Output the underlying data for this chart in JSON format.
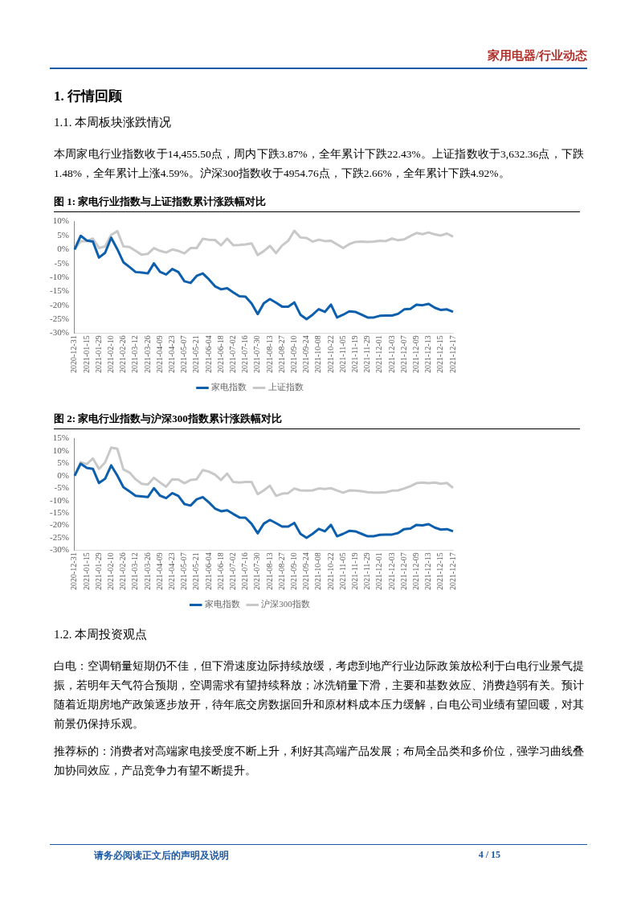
{
  "chart_data": [
    {
      "type": "line",
      "title": "图 1: 家电行业指数与上证指数累计涨跌幅对比",
      "annotations": [
        "家用电器/行业动态",
        "1.  行情回顾",
        "1.1.  本周板块涨跌情况",
        "本周家电行业指数收于14,455.50点，周内下跌3.87%，全年累计下跌22.43%。上证指数收于3,632.36点，下跌1.48%，全年累计上涨4.59%。沪深300指数收于4954.76点，下跌2.66%，全年累计下跌4.92%。"
      ],
      "categories": [
        "2020-12-31",
        null,
        "2021-01-15",
        null,
        "2021-01-29",
        null,
        "2021-02-10",
        null,
        "2021-02-26",
        null,
        "2021-03-12",
        null,
        "2021-03-26",
        null,
        "2021-04-09",
        null,
        "2021-04-23",
        null,
        "2021-05-07",
        null,
        "2021-05-21",
        null,
        "2021-06-04",
        null,
        "2021-06-18",
        null,
        "2021-07-02",
        null,
        "2021-07-16",
        null,
        "2021-07-30",
        null,
        "2021-08-13",
        null,
        "2021-08-27",
        null,
        "2021-09-10",
        null,
        "2021-09-24",
        null,
        "2021-10-08",
        null,
        "2021-10-22",
        null,
        "2021-11-05",
        null,
        "2021-11-19",
        null,
        "2021-11-29",
        null,
        "2021-12-01",
        null,
        "2021-12-03",
        null,
        "2021-12-07",
        null,
        "2021-12-09",
        null,
        "2021-12-13",
        null,
        "2021-12-15",
        null,
        "2021-12-17"
      ],
      "series": [
        {
          "name": "家电指数",
          "color": "#0b5fad",
          "values": [
            0,
            4.9,
            3.2,
            2.8,
            -2.9,
            -1.2,
            4.2,
            0.1,
            -4.6,
            -6.3,
            -8.1,
            -8.3,
            -8.6,
            -5.0,
            -8.0,
            -9.0,
            -7.0,
            -8.1,
            -11.4,
            -12.0,
            -9.5,
            -8.6,
            -10.7,
            -13.2,
            -14.3,
            -13.9,
            -15.4,
            -16.8,
            -16.9,
            -19.4,
            -23.2,
            -19.3,
            -17.8,
            -19.1,
            -20.5,
            -20.5,
            -19.0,
            -23.4,
            -25.0,
            -23.4,
            -21.4,
            -22.4,
            -19.8,
            -24.4,
            -23.4,
            -22.2,
            -22.4,
            -23.4,
            -24.4,
            -24.4,
            -23.8,
            -23.7,
            -23.7,
            -23.1,
            -21.5,
            -21.3,
            -19.8,
            -20.0,
            -19.5,
            -20.9,
            -21.7,
            -21.5,
            -22.4
          ]
        },
        {
          "name": "上证指数",
          "color": "#c8c8c8",
          "values": [
            0,
            3.0,
            3.0,
            3.9,
            0.5,
            1.1,
            5.2,
            6.6,
            1.1,
            0.9,
            -0.5,
            -1.9,
            -1.6,
            0.5,
            -0.5,
            -1.1,
            0,
            -0.5,
            -1.4,
            0.5,
            0.5,
            3.8,
            3.5,
            3.4,
            1.5,
            3.9,
            1.5,
            1.6,
            1.8,
            2.2,
            -2.0,
            -0.6,
            1.3,
            -1.3,
            1.4,
            3.1,
            6.7,
            4.3,
            4.1,
            2.8,
            3.5,
            3.0,
            3.1,
            1.8,
            0.5,
            1.9,
            2.7,
            2.8,
            2.7,
            2.8,
            3.1,
            3.0,
            3.9,
            3.3,
            3.6,
            4.8,
            5.9,
            5.5,
            6.1,
            5.4,
            5.0,
            5.7,
            4.6
          ]
        }
      ],
      "ylim": [
        -30,
        10
      ],
      "yticks": [
        {
          "value": -30,
          "label": "-30%"
        },
        {
          "value": -25,
          "label": "-25%"
        },
        {
          "value": -20,
          "label": "-20%"
        },
        {
          "value": -15,
          "label": "-15%"
        },
        {
          "value": -10,
          "label": "-10%"
        },
        {
          "value": -5,
          "label": "-5%"
        },
        {
          "value": 0,
          "label": "0%"
        },
        {
          "value": 5,
          "label": "5%"
        },
        {
          "value": 10,
          "label": "10%"
        }
      ],
      "legend": "bottom"
    },
    {
      "type": "line",
      "title": "图 2: 家电行业指数与沪深300指数累计涨跌幅对比",
      "annotations": [
        "1.2.  本周投资观点",
        "白电：空调销量短期仍不佳，但下滑速度边际持续放缓，考虑到地产行业边际政策放松利于白电行业景气提振，若明年天气符合预期，空调需求有望持续释放；冰洗销量下滑，主要和基数效应、消费趋弱有关。预计随着近期房地产政策逐步放开，待年底交房数据回升和原材料成本压力缓解，白电公司业绩有望回暖，对其前景仍保持乐观。",
        "推荐标的：消费者对高端家电接受度不断上升，利好其高端产品发展；布局全品类和多价位，强学习曲线叠加协同效应，产品竞争力有望不断提升。",
        "请务必阅读正文后的声明及说明",
        "4 / 15"
      ],
      "categories": [
        "2020-12-31",
        null,
        "2021-01-15",
        null,
        "2021-01-29",
        null,
        "2021-02-10",
        null,
        "2021-02-26",
        null,
        "2021-03-12",
        null,
        "2021-03-26",
        null,
        "2021-04-09",
        null,
        "2021-04-23",
        null,
        "2021-05-07",
        null,
        "2021-05-21",
        null,
        "2021-06-04",
        null,
        "2021-06-18",
        null,
        "2021-07-02",
        null,
        "2021-07-16",
        null,
        "2021-07-30",
        null,
        "2021-08-13",
        null,
        "2021-08-27",
        null,
        "2021-09-10",
        null,
        "2021-09-24",
        null,
        "2021-10-08",
        null,
        "2021-10-22",
        null,
        "2021-11-05",
        null,
        "2021-11-19",
        null,
        "2021-11-29",
        null,
        "2021-12-01",
        null,
        "2021-12-03",
        null,
        "2021-12-07",
        null,
        "2021-12-09",
        null,
        "2021-12-13",
        null,
        "2021-12-15",
        null,
        "2021-12-17"
      ],
      "series": [
        {
          "name": "家电指数",
          "color": "#0b5fad",
          "values": [
            0,
            4.9,
            3.2,
            2.8,
            -2.9,
            -1.2,
            4.2,
            0.1,
            -4.6,
            -6.3,
            -8.1,
            -8.3,
            -8.6,
            -5.0,
            -8.0,
            -9.0,
            -7.0,
            -8.1,
            -11.4,
            -12.0,
            -9.5,
            -8.6,
            -10.7,
            -13.2,
            -14.3,
            -13.9,
            -15.4,
            -16.8,
            -16.9,
            -19.4,
            -23.2,
            -19.3,
            -17.8,
            -19.1,
            -20.5,
            -20.5,
            -19.0,
            -23.4,
            -25.0,
            -23.4,
            -21.4,
            -22.4,
            -19.8,
            -24.4,
            -23.4,
            -22.2,
            -22.4,
            -23.4,
            -24.4,
            -24.4,
            -23.8,
            -23.7,
            -23.7,
            -23.1,
            -21.5,
            -21.3,
            -19.8,
            -20.0,
            -19.5,
            -20.9,
            -21.7,
            -21.5,
            -22.4
          ]
        },
        {
          "name": "沪深300指数",
          "color": "#c8c8c8",
          "values": [
            0,
            5.5,
            4.7,
            7.0,
            2.8,
            5.4,
            11.4,
            10.9,
            2.6,
            1.3,
            -1.4,
            -3.2,
            -3.5,
            -0.8,
            -2.7,
            -4.4,
            -1.4,
            -1.5,
            -3.0,
            -1.7,
            -1.4,
            2.3,
            1.7,
            0.5,
            -1.7,
            0.9,
            -2.5,
            -2.7,
            -2.5,
            -2.5,
            -7.4,
            -5.9,
            -4.0,
            -8.1,
            -7.2,
            -7.0,
            -5.1,
            -5.9,
            -6.0,
            -5.9,
            -5.1,
            -5.3,
            -5.0,
            -5.9,
            -6.8,
            -5.9,
            -6.0,
            -6.2,
            -6.6,
            -6.8,
            -6.8,
            -6.6,
            -6.0,
            -5.9,
            -5.1,
            -4.2,
            -3.0,
            -2.7,
            -3.0,
            -2.7,
            -3.2,
            -2.9,
            -4.9
          ]
        }
      ],
      "ylim": [
        -30,
        15
      ],
      "yticks": [
        {
          "value": -30,
          "label": "-30%"
        },
        {
          "value": -25,
          "label": "-25%"
        },
        {
          "value": -20,
          "label": "-20%"
        },
        {
          "value": -15,
          "label": "-15%"
        },
        {
          "value": -10,
          "label": "-10%"
        },
        {
          "value": -5,
          "label": "-5%"
        },
        {
          "value": 0,
          "label": "0%"
        },
        {
          "value": 5,
          "label": "5%"
        },
        {
          "value": 10,
          "label": "10%"
        },
        {
          "value": 15,
          "label": "15%"
        }
      ],
      "legend": "bottom"
    }
  ]
}
